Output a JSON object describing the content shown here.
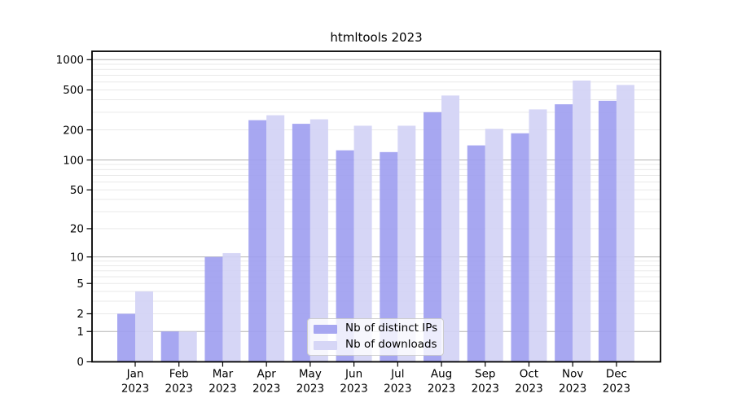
{
  "title": "htmltools 2023",
  "chart_data": {
    "type": "bar",
    "title": "htmltools 2023",
    "year": "2023",
    "categories": [
      "Jan",
      "Feb",
      "Mar",
      "Apr",
      "May",
      "Jun",
      "Jul",
      "Aug",
      "Sep",
      "Oct",
      "Nov",
      "Dec"
    ],
    "series": [
      {
        "name": "Nb of distinct IPs",
        "color": "#9d9df0",
        "values": [
          2,
          1,
          10,
          250,
          230,
          125,
          120,
          300,
          140,
          185,
          360,
          390
        ]
      },
      {
        "name": "Nb of downloads",
        "color": "#d2d2f5",
        "values": [
          4,
          1,
          11,
          280,
          255,
          220,
          220,
          440,
          205,
          320,
          620,
          560
        ]
      }
    ],
    "xlabel": "",
    "ylabel": "",
    "yscale": "log1p",
    "ylim": [
      0,
      1200
    ],
    "yticks": [
      0,
      1,
      2,
      5,
      10,
      20,
      50,
      100,
      200,
      500,
      1000
    ],
    "grid": {
      "major_lines": [
        1,
        10,
        100,
        1000
      ],
      "minor_lines": "2-9 per decade",
      "major_color": "#b3b3b3",
      "minor_color": "#e9e9e9"
    },
    "legend_position": "lower center inside plot"
  },
  "colors": {
    "background": "#ffffff",
    "axis": "#000000",
    "text": "#000000"
  }
}
